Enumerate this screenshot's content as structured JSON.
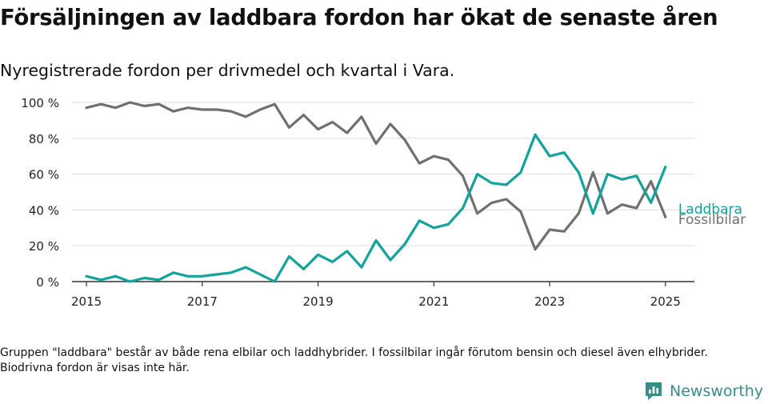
{
  "title": "Försäljningen av laddbara fordon har ökat de senaste åren",
  "subtitle": "Nyregistrerade fordon per drivmedel och kvartal i Vara.",
  "note": "Gruppen \"laddbara\" består av både rena elbilar och laddhybrider. I fossilbilar ingår förutom bensin och diesel även elhybrider. Biodrivna fordon är visas inte här.",
  "brand": {
    "name": "Newsworthy"
  },
  "colors": {
    "laddbara": "#12a39a",
    "fossilbilar": "#707073",
    "grid": "#dddddd",
    "axis": "#333333",
    "brand": "#3a8d87"
  },
  "chart_data": {
    "type": "line",
    "title": "",
    "xlabel": "",
    "ylabel": "",
    "ylim": [
      0,
      100
    ],
    "y_ticks": [
      0,
      20,
      40,
      60,
      80,
      100
    ],
    "y_tick_labels": [
      "0 %",
      "20 %",
      "40 %",
      "60 %",
      "80 %",
      "100 %"
    ],
    "x_tick_years": [
      2015,
      2017,
      2019,
      2021,
      2023,
      2025
    ],
    "x_tick_labels": [
      "2015",
      "2017",
      "2019",
      "2021",
      "2023",
      "2025"
    ],
    "xlim": [
      2014.75,
      2025.5
    ],
    "grid": true,
    "legend": "end-of-line labels",
    "x": [
      2015.0,
      2015.25,
      2015.5,
      2015.75,
      2016.0,
      2016.25,
      2016.5,
      2016.75,
      2017.0,
      2017.25,
      2017.5,
      2017.75,
      2018.0,
      2018.25,
      2018.5,
      2018.75,
      2019.0,
      2019.25,
      2019.5,
      2019.75,
      2020.0,
      2020.25,
      2020.5,
      2020.75,
      2021.0,
      2021.25,
      2021.5,
      2021.75,
      2022.0,
      2022.25,
      2022.5,
      2022.75,
      2023.0,
      2023.25,
      2023.5,
      2023.75,
      2024.0,
      2024.25,
      2024.5,
      2024.75,
      2025.0
    ],
    "series": [
      {
        "name": "Laddbara",
        "color": "#12a39a",
        "values": [
          3,
          1,
          3,
          0,
          2,
          1,
          5,
          3,
          3,
          4,
          5,
          8,
          4,
          0,
          14,
          7,
          15,
          11,
          17,
          8,
          23,
          12,
          21,
          34,
          30,
          32,
          41,
          60,
          55,
          54,
          61,
          82,
          70,
          72,
          61,
          38,
          60,
          57,
          59,
          44,
          64
        ]
      },
      {
        "name": "Fossilbilar",
        "color": "#707073",
        "values": [
          97,
          99,
          97,
          100,
          98,
          99,
          95,
          97,
          96,
          96,
          95,
          92,
          96,
          99,
          86,
          93,
          85,
          89,
          83,
          92,
          77,
          88,
          79,
          66,
          70,
          68,
          59,
          38,
          44,
          46,
          39,
          18,
          29,
          28,
          38,
          61,
          38,
          43,
          41,
          56,
          36
        ]
      }
    ]
  }
}
